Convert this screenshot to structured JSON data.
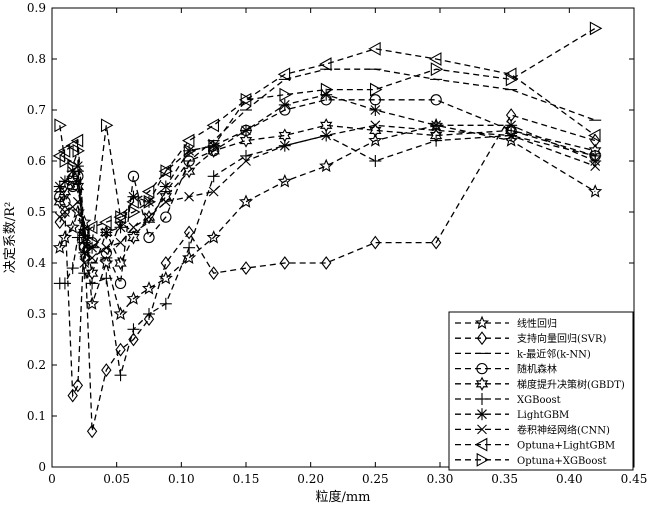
{
  "chart_data": {
    "type": "line",
    "xlabel": "粒度/mm",
    "ylabel": "决定系数/R²",
    "xlim": [
      0,
      0.45
    ],
    "ylim": [
      0,
      0.9
    ],
    "xticks": [
      0,
      0.05,
      0.1,
      0.15,
      0.2,
      0.25,
      0.3,
      0.35,
      0.4,
      0.45
    ],
    "xtick_labels": [
      "0",
      "0.05",
      "0.10",
      "0.15",
      "0.20",
      "0.25",
      "0.30",
      "0.35",
      "0.40",
      "0.45"
    ],
    "yticks": [
      0,
      0.1,
      0.2,
      0.3,
      0.4,
      0.5,
      0.6,
      0.7,
      0.8,
      0.9
    ],
    "ytick_labels": [
      "0",
      "0.1",
      "0.2",
      "0.3",
      "0.4",
      "0.5",
      "0.6",
      "0.7",
      "0.8",
      "0.9"
    ],
    "grid": false,
    "legend_position": "bottom-right",
    "x": [
      0.006,
      0.01,
      0.016,
      0.02,
      0.025,
      0.031,
      0.042,
      0.053,
      0.063,
      0.075,
      0.088,
      0.106,
      0.125,
      0.15,
      0.18,
      0.212,
      0.25,
      0.297,
      0.355,
      0.42
    ],
    "series": [
      {
        "name": "线性回归",
        "marker": "star",
        "values": [
          0.43,
          0.45,
          0.47,
          0.5,
          0.48,
          0.32,
          0.4,
          0.3,
          0.33,
          0.35,
          0.37,
          0.41,
          0.45,
          0.52,
          0.56,
          0.59,
          0.64,
          0.67,
          0.64,
          0.54
        ]
      },
      {
        "name": "支持向量回归(SVR)",
        "marker": "diamond",
        "values": [
          0.48,
          0.5,
          0.14,
          0.16,
          0.46,
          0.07,
          0.19,
          0.23,
          0.25,
          0.29,
          0.4,
          0.46,
          0.38,
          0.39,
          0.4,
          0.4,
          0.44,
          0.44,
          0.69,
          0.64
        ]
      },
      {
        "name": "k-最近邻(k-NN)",
        "marker": "dash",
        "values": [
          0.54,
          0.56,
          0.57,
          0.58,
          0.44,
          0.4,
          0.41,
          0.48,
          0.46,
          0.48,
          0.54,
          0.6,
          0.64,
          0.7,
          0.76,
          0.78,
          0.78,
          0.76,
          0.74,
          0.68
        ]
      },
      {
        "name": "随机森林",
        "marker": "circle",
        "values": [
          0.53,
          0.52,
          0.55,
          0.57,
          0.43,
          0.44,
          0.42,
          0.36,
          0.57,
          0.45,
          0.49,
          0.6,
          0.62,
          0.66,
          0.7,
          0.72,
          0.72,
          0.72,
          0.66,
          0.61
        ]
      },
      {
        "name": "梯度提升决策树(GBDT)",
        "marker": "hexstar",
        "values": [
          0.52,
          0.54,
          0.56,
          0.55,
          0.46,
          0.38,
          0.46,
          0.4,
          0.45,
          0.49,
          0.53,
          0.58,
          0.62,
          0.64,
          0.65,
          0.67,
          0.66,
          0.65,
          0.66,
          0.62
        ]
      },
      {
        "name": "XGBoost",
        "marker": "plus",
        "values": [
          0.36,
          0.36,
          0.39,
          0.45,
          0.38,
          0.36,
          0.37,
          0.18,
          0.27,
          0.3,
          0.32,
          0.43,
          0.57,
          0.61,
          0.63,
          0.65,
          0.6,
          0.64,
          0.65,
          0.61
        ]
      },
      {
        "name": "LightGBM",
        "marker": "asterisk",
        "values": [
          0.55,
          0.56,
          0.58,
          0.59,
          0.42,
          0.43,
          0.46,
          0.47,
          0.53,
          0.52,
          0.55,
          0.62,
          0.63,
          0.66,
          0.71,
          0.73,
          0.7,
          0.67,
          0.67,
          0.6
        ]
      },
      {
        "name": "卷积神经网络(CNN)",
        "marker": "x",
        "values": [
          0.49,
          0.5,
          0.51,
          0.52,
          0.4,
          0.41,
          0.43,
          0.44,
          0.47,
          0.49,
          0.52,
          0.53,
          0.54,
          0.6,
          0.63,
          0.65,
          0.67,
          0.66,
          0.65,
          0.59
        ]
      },
      {
        "name": "Optuna+LightGBM",
        "marker": "triangle-left",
        "values": [
          0.61,
          0.62,
          0.63,
          0.64,
          0.46,
          0.47,
          0.48,
          0.49,
          0.52,
          0.54,
          0.58,
          0.64,
          0.67,
          0.72,
          0.77,
          0.79,
          0.82,
          0.8,
          0.77,
          0.65
        ]
      },
      {
        "name": "Optuna+XGBoost",
        "marker": "triangle-right",
        "values": [
          0.67,
          0.6,
          0.59,
          0.62,
          0.45,
          0.44,
          0.67,
          0.49,
          0.5,
          0.52,
          0.58,
          0.62,
          0.63,
          0.72,
          0.73,
          0.74,
          0.74,
          0.78,
          0.76,
          0.86
        ]
      }
    ]
  }
}
